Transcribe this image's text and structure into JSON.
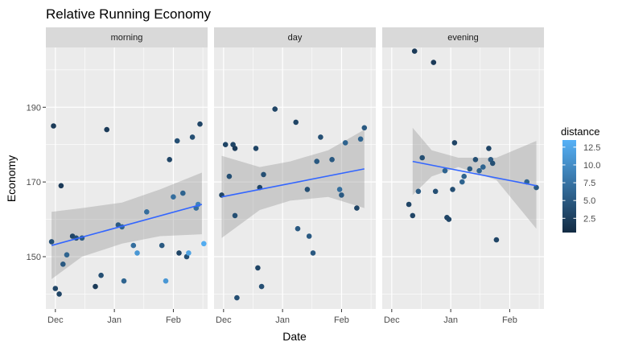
{
  "chart_data": {
    "type": "scatter",
    "title": "Relative Running Economy",
    "xlabel": "Date",
    "ylabel": "Economy",
    "ylim": [
      136,
      206
    ],
    "xlim": [
      "2015-11-26",
      "2016-02-19"
    ],
    "x_ticks": [
      {
        "date": "2015-12-01",
        "label": "Dec"
      },
      {
        "date": "2016-01-01",
        "label": "Jan"
      },
      {
        "date": "2016-02-01",
        "label": "Feb"
      }
    ],
    "y_ticks": [
      150,
      170,
      190
    ],
    "grid": true,
    "legend": {
      "title": "distance",
      "position": "right",
      "min": 0.5,
      "max": 13.5,
      "ticks": [
        2.5,
        5.0,
        7.5,
        10.0,
        12.5
      ],
      "tick_labels": [
        "2.5",
        "5.0",
        "7.5",
        "10.0",
        "12.5"
      ],
      "low_color": "#132B43",
      "high_color": "#56B1F7"
    },
    "smooth": {
      "method": "linear",
      "line_color": "#3366FF",
      "band_color": "#999999"
    },
    "facets": [
      {
        "label": "morning",
        "fit": {
          "start": [
            "2015-11-29",
            153
          ],
          "end": [
            "2016-02-16",
            164
          ]
        },
        "band_upper": [
          [
            "2015-11-29",
            162
          ],
          [
            "2015-12-15",
            163
          ],
          [
            "2016-01-05",
            164.5
          ],
          [
            "2016-01-25",
            168
          ],
          [
            "2016-02-16",
            172.5
          ]
        ],
        "band_lower": [
          [
            "2015-11-29",
            144
          ],
          [
            "2015-12-15",
            150
          ],
          [
            "2016-01-05",
            153.5
          ],
          [
            "2016-01-25",
            155.5
          ],
          [
            "2016-02-16",
            156
          ]
        ],
        "points": [
          {
            "x": "2015-11-29",
            "y": 154,
            "distance": 4
          },
          {
            "x": "2015-11-30",
            "y": 185,
            "distance": 2
          },
          {
            "x": "2015-12-01",
            "y": 141.5,
            "distance": 3
          },
          {
            "x": "2015-12-03",
            "y": 140,
            "distance": 3
          },
          {
            "x": "2015-12-04",
            "y": 169,
            "distance": 2
          },
          {
            "x": "2015-12-05",
            "y": 148,
            "distance": 5
          },
          {
            "x": "2015-12-07",
            "y": 150.5,
            "distance": 6
          },
          {
            "x": "2015-12-10",
            "y": 155.5,
            "distance": 3
          },
          {
            "x": "2015-12-12",
            "y": 155,
            "distance": 4
          },
          {
            "x": "2015-12-15",
            "y": 155,
            "distance": 5
          },
          {
            "x": "2015-12-22",
            "y": 142,
            "distance": 2
          },
          {
            "x": "2015-12-25",
            "y": 145,
            "distance": 4
          },
          {
            "x": "2015-12-28",
            "y": 184,
            "distance": 2
          },
          {
            "x": "2016-01-03",
            "y": 158.5,
            "distance": 5
          },
          {
            "x": "2016-01-05",
            "y": 158,
            "distance": 6
          },
          {
            "x": "2016-01-06",
            "y": 143.5,
            "distance": 6
          },
          {
            "x": "2016-01-11",
            "y": 153,
            "distance": 7
          },
          {
            "x": "2016-01-13",
            "y": 151,
            "distance": 11
          },
          {
            "x": "2016-01-18",
            "y": 162,
            "distance": 7
          },
          {
            "x": "2016-01-26",
            "y": 153,
            "distance": 5
          },
          {
            "x": "2016-01-28",
            "y": 143.5,
            "distance": 11
          },
          {
            "x": "2016-01-30",
            "y": 176,
            "distance": 3
          },
          {
            "x": "2016-02-01",
            "y": 166,
            "distance": 7
          },
          {
            "x": "2016-02-03",
            "y": 181,
            "distance": 4
          },
          {
            "x": "2016-02-04",
            "y": 151,
            "distance": 3
          },
          {
            "x": "2016-02-06",
            "y": 167,
            "distance": 6
          },
          {
            "x": "2016-02-08",
            "y": 150,
            "distance": 4
          },
          {
            "x": "2016-02-09",
            "y": 151,
            "distance": 12
          },
          {
            "x": "2016-02-11",
            "y": 182,
            "distance": 4
          },
          {
            "x": "2016-02-13",
            "y": 163,
            "distance": 7
          },
          {
            "x": "2016-02-14",
            "y": 164,
            "distance": 9
          },
          {
            "x": "2016-02-15",
            "y": 185.5,
            "distance": 3
          },
          {
            "x": "2016-02-17",
            "y": 153.5,
            "distance": 13
          }
        ]
      },
      {
        "label": "day",
        "fit": {
          "start": [
            "2015-11-30",
            166
          ],
          "end": [
            "2016-02-13",
            173.5
          ]
        },
        "band_upper": [
          [
            "2015-11-30",
            177
          ],
          [
            "2015-12-20",
            174
          ],
          [
            "2016-01-05",
            175.5
          ],
          [
            "2016-01-25",
            178.5
          ],
          [
            "2016-02-13",
            184
          ]
        ],
        "band_lower": [
          [
            "2015-11-30",
            155
          ],
          [
            "2015-12-20",
            162.5
          ],
          [
            "2016-01-05",
            165
          ],
          [
            "2016-01-25",
            166
          ],
          [
            "2016-02-13",
            163
          ]
        ],
        "points": [
          {
            "x": "2015-11-30",
            "y": 166.5,
            "distance": 3
          },
          {
            "x": "2015-12-02",
            "y": 180,
            "distance": 3
          },
          {
            "x": "2015-12-04",
            "y": 171.5,
            "distance": 4
          },
          {
            "x": "2015-12-06",
            "y": 180,
            "distance": 3
          },
          {
            "x": "2015-12-07",
            "y": 179,
            "distance": 2
          },
          {
            "x": "2015-12-07",
            "y": 161,
            "distance": 4
          },
          {
            "x": "2015-12-08",
            "y": 139,
            "distance": 4
          },
          {
            "x": "2015-12-18",
            "y": 179,
            "distance": 3
          },
          {
            "x": "2015-12-19",
            "y": 147,
            "distance": 3
          },
          {
            "x": "2015-12-20",
            "y": 168.5,
            "distance": 3
          },
          {
            "x": "2015-12-21",
            "y": 142,
            "distance": 4
          },
          {
            "x": "2015-12-22",
            "y": 172,
            "distance": 4
          },
          {
            "x": "2015-12-28",
            "y": 189.5,
            "distance": 3
          },
          {
            "x": "2016-01-08",
            "y": 186,
            "distance": 3
          },
          {
            "x": "2016-01-09",
            "y": 157.5,
            "distance": 5
          },
          {
            "x": "2016-01-14",
            "y": 168,
            "distance": 4
          },
          {
            "x": "2016-01-15",
            "y": 155.5,
            "distance": 5
          },
          {
            "x": "2016-01-17",
            "y": 151,
            "distance": 5
          },
          {
            "x": "2016-01-19",
            "y": 175.5,
            "distance": 5
          },
          {
            "x": "2016-01-21",
            "y": 182,
            "distance": 4
          },
          {
            "x": "2016-01-27",
            "y": 176,
            "distance": 5
          },
          {
            "x": "2016-01-31",
            "y": 168,
            "distance": 7
          },
          {
            "x": "2016-02-01",
            "y": 166.5,
            "distance": 5
          },
          {
            "x": "2016-02-03",
            "y": 180.5,
            "distance": 6
          },
          {
            "x": "2016-02-09",
            "y": 163,
            "distance": 3
          },
          {
            "x": "2016-02-11",
            "y": 181.5,
            "distance": 6
          },
          {
            "x": "2016-02-13",
            "y": 184.5,
            "distance": 5
          }
        ]
      },
      {
        "label": "evening",
        "fit": {
          "start": [
            "2015-12-12",
            175.5
          ],
          "end": [
            "2016-02-15",
            169
          ]
        },
        "band_upper": [
          [
            "2015-12-12",
            184.5
          ],
          [
            "2015-12-22",
            178.5
          ],
          [
            "2016-01-05",
            176.5
          ],
          [
            "2016-01-25",
            176.5
          ],
          [
            "2016-02-15",
            181
          ]
        ],
        "band_lower": [
          [
            "2015-12-12",
            166.5
          ],
          [
            "2015-12-22",
            171.5
          ],
          [
            "2016-01-05",
            174
          ],
          [
            "2016-01-25",
            170.5
          ],
          [
            "2016-02-15",
            157.5
          ]
        ],
        "points": [
          {
            "x": "2015-12-10",
            "y": 164,
            "distance": 3
          },
          {
            "x": "2015-12-12",
            "y": 161,
            "distance": 3
          },
          {
            "x": "2015-12-13",
            "y": 205,
            "distance": 2
          },
          {
            "x": "2015-12-15",
            "y": 167.5,
            "distance": 5
          },
          {
            "x": "2015-12-17",
            "y": 176.5,
            "distance": 4
          },
          {
            "x": "2015-12-23",
            "y": 202,
            "distance": 2
          },
          {
            "x": "2015-12-24",
            "y": 167.5,
            "distance": 4
          },
          {
            "x": "2015-12-29",
            "y": 173,
            "distance": 6
          },
          {
            "x": "2015-12-30",
            "y": 160.5,
            "distance": 3
          },
          {
            "x": "2015-12-31",
            "y": 160,
            "distance": 3
          },
          {
            "x": "2016-01-02",
            "y": 168,
            "distance": 4
          },
          {
            "x": "2016-01-03",
            "y": 180.5,
            "distance": 3
          },
          {
            "x": "2016-01-07",
            "y": 170,
            "distance": 6
          },
          {
            "x": "2016-01-08",
            "y": 171.5,
            "distance": 6
          },
          {
            "x": "2016-01-11",
            "y": 173.5,
            "distance": 5
          },
          {
            "x": "2016-01-14",
            "y": 176,
            "distance": 4
          },
          {
            "x": "2016-01-16",
            "y": 173,
            "distance": 6
          },
          {
            "x": "2016-01-18",
            "y": 174,
            "distance": 6
          },
          {
            "x": "2016-01-21",
            "y": 179,
            "distance": 3
          },
          {
            "x": "2016-01-22",
            "y": 176,
            "distance": 5
          },
          {
            "x": "2016-01-23",
            "y": 175,
            "distance": 4
          },
          {
            "x": "2016-01-25",
            "y": 154.5,
            "distance": 3
          },
          {
            "x": "2016-02-10",
            "y": 170,
            "distance": 6
          },
          {
            "x": "2016-02-15",
            "y": 168.5,
            "distance": 5
          }
        ]
      }
    ]
  }
}
